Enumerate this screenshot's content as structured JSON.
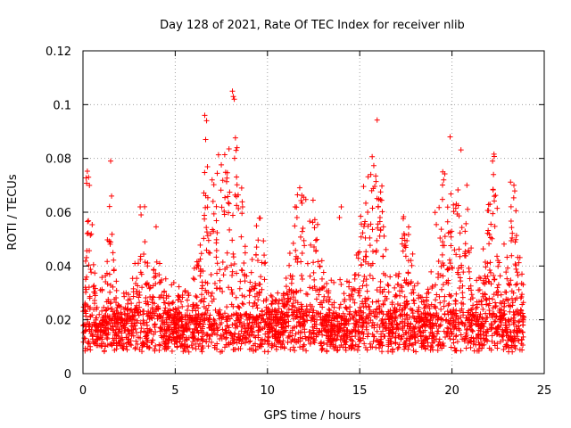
{
  "chart_data": {
    "type": "scatter",
    "title": "Day 128 of 2021, Rate Of TEC Index for receiver nlib",
    "xlabel": "GPS time / hours",
    "ylabel": "ROTI / TECUs",
    "xlim": [
      0,
      25
    ],
    "ylim": [
      0,
      0.12
    ],
    "x_ticks": [
      "0",
      "5",
      "10",
      "15",
      "20",
      "25"
    ],
    "y_ticks": [
      "0",
      "0.02",
      "0.04",
      "0.06",
      "0.08",
      "0.1",
      "0.12"
    ],
    "grid": true,
    "marker": "+",
    "series": [
      {
        "name": "ROTI",
        "color": "#ff0000",
        "x": [
          6.6,
          6.65,
          6.7,
          8.1,
          8.15,
          8.2,
          8.3,
          8.35,
          19.9,
          0.3,
          0.35,
          1.5,
          1.55,
          22.2,
          22.25,
          7.0,
          7.05,
          8.6,
          8.65,
          15.6,
          15.65,
          16.0,
          16.1,
          19.5,
          19.55,
          3.1,
          3.15,
          13.9,
          14.0,
          11.5,
          11.6,
          17.4,
          4.8
        ],
        "y": [
          0.096,
          0.087,
          0.094,
          0.105,
          0.103,
          0.102,
          0.083,
          0.084,
          0.088,
          0.073,
          0.07,
          0.079,
          0.066,
          0.079,
          0.074,
          0.072,
          0.064,
          0.069,
          0.062,
          0.074,
          0.068,
          0.062,
          0.058,
          0.075,
          0.072,
          0.062,
          0.059,
          0.058,
          0.062,
          0.062,
          0.058,
          0.052,
          0.033
        ]
      }
    ]
  }
}
